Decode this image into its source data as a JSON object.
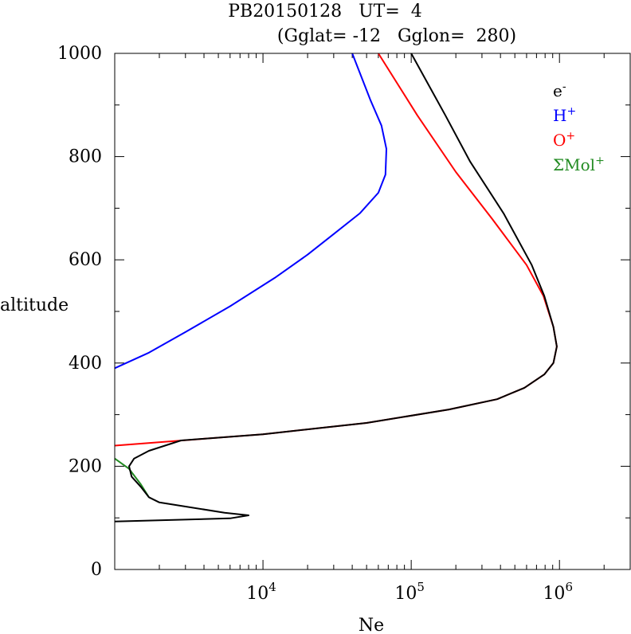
{
  "chart_data": {
    "type": "line",
    "title_line1": "PB20150128   UT=  4",
    "title_line2": "(Gglat= -12   Gglon=  280)",
    "xlabel": "Ne",
    "ylabel": "altitude",
    "xscale": "log",
    "xlim": [
      1000,
      3000000
    ],
    "ylim": [
      0,
      1000
    ],
    "yticks": [
      {
        "value": 0,
        "label": "0"
      },
      {
        "value": 200,
        "label": "200"
      },
      {
        "value": 400,
        "label": "400"
      },
      {
        "value": 600,
        "label": "600"
      },
      {
        "value": 800,
        "label": "800"
      },
      {
        "value": 1000,
        "label": "1000"
      }
    ],
    "xticks": [
      {
        "value": 10000,
        "base": "10",
        "exp": "4"
      },
      {
        "value": 100000,
        "base": "10",
        "exp": "5"
      },
      {
        "value": 1000000,
        "base": "10",
        "exp": "6"
      }
    ],
    "legend_position": "top-right",
    "series": [
      {
        "name": "H+",
        "legend_base": "H",
        "legend_sup": "+",
        "color": "#0000ff",
        "points": [
          [
            1000,
            390
          ],
          [
            1700,
            420
          ],
          [
            3000,
            460
          ],
          [
            6000,
            510
          ],
          [
            12000,
            565
          ],
          [
            20000,
            610
          ],
          [
            30000,
            650
          ],
          [
            45000,
            690
          ],
          [
            60000,
            730
          ],
          [
            67000,
            765
          ],
          [
            68000,
            815
          ],
          [
            63000,
            860
          ],
          [
            53000,
            910
          ],
          [
            40000,
            1000
          ]
        ]
      },
      {
        "name": "O+",
        "legend_base": "O",
        "legend_sup": "+",
        "color": "#ff0000",
        "points": [
          [
            1000,
            240
          ],
          [
            10000,
            262
          ],
          [
            50000,
            284
          ],
          [
            180000,
            310
          ],
          [
            380000,
            330
          ],
          [
            580000,
            352
          ],
          [
            790000,
            378
          ],
          [
            910000,
            400
          ],
          [
            960000,
            432
          ],
          [
            910000,
            470
          ],
          [
            780000,
            530
          ],
          [
            600000,
            590
          ],
          [
            350000,
            680
          ],
          [
            200000,
            770
          ],
          [
            110000,
            880
          ],
          [
            60000,
            1000
          ]
        ]
      },
      {
        "name": "ΣMol+",
        "legend_base": "ΣMol",
        "legend_sup": "+",
        "color": "#228b22",
        "points": [
          [
            1000,
            215
          ],
          [
            1250,
            195
          ],
          [
            1500,
            165
          ],
          [
            1700,
            140
          ]
        ]
      },
      {
        "name": "e-",
        "legend_base": "e",
        "legend_sup": "-",
        "color": "#000000",
        "points": [
          [
            1000,
            93
          ],
          [
            6000,
            99
          ],
          [
            8000,
            105
          ],
          [
            5500,
            110
          ],
          [
            2000,
            130
          ],
          [
            1700,
            140
          ],
          [
            1500,
            160
          ],
          [
            1300,
            180
          ],
          [
            1250,
            200
          ],
          [
            1350,
            215
          ],
          [
            1700,
            230
          ],
          [
            2800,
            250
          ],
          [
            10000,
            262
          ],
          [
            50000,
            284
          ],
          [
            180000,
            310
          ],
          [
            380000,
            330
          ],
          [
            580000,
            352
          ],
          [
            790000,
            378
          ],
          [
            910000,
            400
          ],
          [
            960000,
            432
          ],
          [
            910000,
            470
          ],
          [
            790000,
            530
          ],
          [
            650000,
            590
          ],
          [
            420000,
            690
          ],
          [
            250000,
            790
          ],
          [
            170000,
            880
          ],
          [
            100000,
            1000
          ]
        ]
      }
    ]
  }
}
